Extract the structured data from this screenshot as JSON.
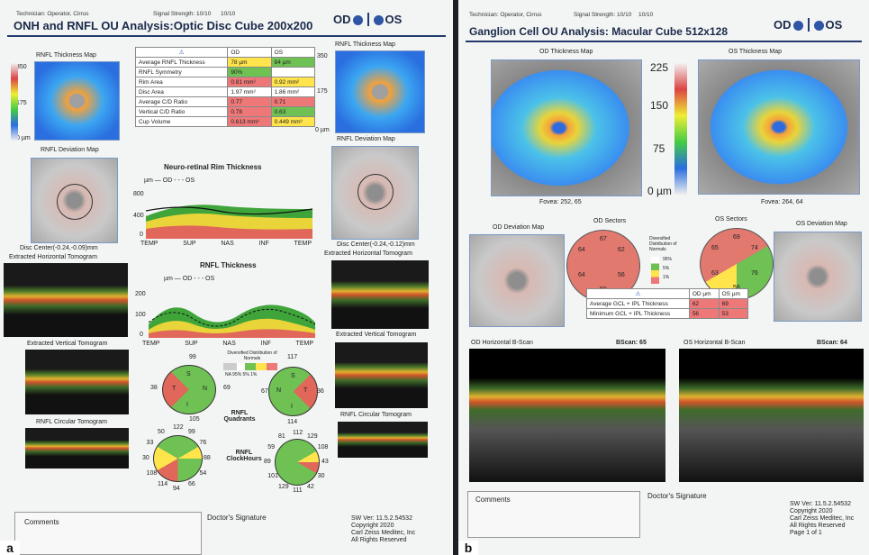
{
  "a": {
    "tag": "a",
    "tech": "Technician:  Operator, Cirrus",
    "signal": "Signal Strength:  10/10",
    "signal2": "10/10",
    "title": "ONH and RNFL OU Analysis:Optic Disc Cube 200x200",
    "od": "OD",
    "os": "OS",
    "rnfl_map": "RNFL Thickness Map",
    "scale": [
      "350",
      "175",
      "0 µm"
    ],
    "os_scale": [
      "350",
      "175",
      "0 µm"
    ],
    "table_hdr": [
      "OD",
      "OS"
    ],
    "table_rows": [
      {
        "k": "Average RNFL Thickness",
        "od": "78 µm",
        "os": "84 µm",
        "c1": "y",
        "c2": "g"
      },
      {
        "k": "RNFL Symmetry",
        "od": "90%",
        "os": "",
        "c1": "g",
        "c2": "w"
      },
      {
        "k": "Rim Area",
        "od": "0.81 mm²",
        "os": "0.92 mm²",
        "c1": "r",
        "c2": "y"
      },
      {
        "k": "Disc Area",
        "od": "1.97 mm²",
        "os": "1.86 mm²",
        "c1": "w",
        "c2": "w"
      },
      {
        "k": "Average C/D Ratio",
        "od": "0.77",
        "os": "0.71",
        "c1": "r",
        "c2": "r"
      },
      {
        "k": "Vertical C/D Ratio",
        "od": "0.78",
        "os": "0.63",
        "c1": "r",
        "c2": "g"
      },
      {
        "k": "Cup Volume",
        "od": "0.613 mm³",
        "os": "0.449 mm³",
        "c1": "r",
        "c2": "y"
      }
    ],
    "dev_map": "RNFL Deviation Map",
    "rim_title": "Neuro-retinal Rim Thickness",
    "legend": "µm     — OD - - - OS",
    "rim_y": [
      "800",
      "400",
      "0"
    ],
    "axis": [
      "TEMP",
      "SUP",
      "NAS",
      "INF",
      "TEMP"
    ],
    "disc_od": "Disc Center(-0.24,-0.09)mm",
    "disc_os": "Disc Center(-0.24,-0.12)mm",
    "eht": "Extracted Horizontal Tomogram",
    "rnfl_title": "RNFL Thickness",
    "rnfl_y": [
      "200",
      "100",
      "0"
    ],
    "evt": "Extracted Vertical Tomogram",
    "dist": "Diversified Distribution of Normals",
    "dist_keys": "NA   95% 5% 1%",
    "quad_od": {
      "s": "99",
      "n": "69",
      "i": "105",
      "t": "38"
    },
    "quad_os": {
      "s": "117",
      "n": "67",
      "i": "114",
      "t": "36"
    },
    "quad_lbl": "RNFL Quadrants",
    "circ": "RNFL Circular Tomogram",
    "clk_od": [
      "122",
      "99",
      "76",
      "88",
      "54",
      "66",
      "94",
      "114",
      "108",
      "30",
      "33",
      "50"
    ],
    "clk_os": [
      "112",
      "129",
      "108",
      "43",
      "30",
      "42",
      "111",
      "129",
      "101",
      "89",
      "59",
      "81"
    ],
    "clk_lbl": "RNFL ClockHours",
    "comments": "Comments",
    "sig": "Doctor's Signature",
    "sw": [
      "SW Ver: 11.5.2.54532",
      "Copyright 2020",
      "Carl Zeiss Meditec, Inc",
      "All Rights Reserved"
    ]
  },
  "b": {
    "tag": "b",
    "tech": "Technician:  Operator, Cirrus",
    "signal": "Signal Strength:  10/10",
    "signal2": "10/10",
    "title": "Ganglion Cell OU Analysis: Macular Cube 512x128",
    "od": "OD",
    "os": "OS",
    "od_map": "OD Thickness Map",
    "os_map": "OS Thickness Map",
    "scale": [
      "225",
      "150",
      "75",
      "0 µm"
    ],
    "fovea_od": "Fovea: 252, 65",
    "fovea_os": "Fovea: 264, 64",
    "od_dev": "OD Deviation Map",
    "od_sec": "OD Sectors",
    "os_sec": "OS Sectors",
    "os_dev": "OS Deviation Map",
    "od_vals": [
      "67",
      "62",
      "56",
      "59",
      "64",
      "64"
    ],
    "os_vals": [
      "69",
      "74",
      "76",
      "58",
      "63",
      "65"
    ],
    "dist": "Diversified Distribution of Normals",
    "dist_keys": [
      "95%",
      "5%",
      "1%"
    ],
    "gcl_hdr": [
      "OD µm",
      "OS µm"
    ],
    "gcl_rows": [
      {
        "k": "Average GCL + IPL Thickness",
        "od": "62",
        "os": "69"
      },
      {
        "k": "Minimum GCL + IPL Thickness",
        "od": "56",
        "os": "53"
      }
    ],
    "od_hscan": "OD Horizontal B-Scan",
    "os_hscan": "OS Horizontal B-Scan",
    "bscan_od": "BScan:  65",
    "bscan_os": "BScan:  64",
    "comments": "Comments",
    "sig": "Doctor's Signature",
    "sw": [
      "SW Ver: 11.5.2.54532",
      "Copyright 2020",
      "Carl Zeiss Meditec, Inc",
      "All Rights Reserved",
      "Page 1 of 1"
    ]
  }
}
